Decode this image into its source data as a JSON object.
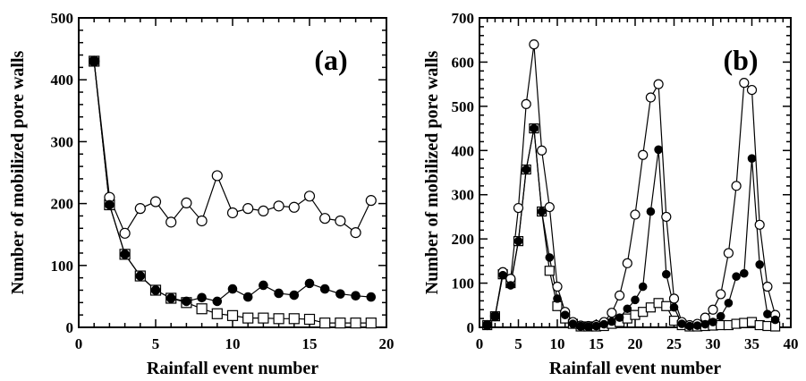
{
  "chart_data": [
    {
      "type": "line",
      "panel_label": "(a)",
      "xlabel": "Rainfall event number",
      "ylabel": "Number of mobilized pore walls",
      "xlim": [
        0,
        20
      ],
      "ylim": [
        0,
        500
      ],
      "xticks": [
        0,
        5,
        10,
        15,
        20
      ],
      "yticks": [
        0,
        100,
        200,
        300,
        400,
        500
      ],
      "grid": false,
      "series": [
        {
          "marker": "open-circle",
          "x": [
            1,
            2,
            3,
            4,
            5,
            6,
            7,
            8,
            9,
            10,
            11,
            12,
            13,
            14,
            15,
            16,
            17,
            18,
            19
          ],
          "y": [
            430,
            210,
            152,
            192,
            203,
            170,
            201,
            172,
            245,
            185,
            192,
            188,
            196,
            194,
            212,
            176,
            172,
            153,
            205
          ]
        },
        {
          "marker": "filled-circle",
          "x": [
            1,
            2,
            3,
            4,
            5,
            6,
            7,
            8,
            9,
            10,
            11,
            12,
            13,
            14,
            15,
            16,
            17,
            18,
            19
          ],
          "y": [
            430,
            198,
            118,
            83,
            60,
            47,
            42,
            48,
            42,
            62,
            49,
            68,
            55,
            52,
            71,
            62,
            54,
            51,
            49
          ]
        },
        {
          "marker": "open-square",
          "x": [
            1,
            2,
            3,
            4,
            5,
            6,
            7,
            8,
            9,
            10,
            11,
            12,
            13,
            14,
            15,
            16,
            17,
            18,
            19
          ],
          "y": [
            430,
            198,
            118,
            83,
            60,
            47,
            40,
            30,
            22,
            19,
            15,
            15,
            14,
            14,
            13,
            7,
            7,
            7,
            7
          ]
        }
      ]
    },
    {
      "type": "line",
      "panel_label": "(b)",
      "xlabel": "Rainfall event number",
      "ylabel": "Number of mobilized pore walls",
      "xlim": [
        0,
        40
      ],
      "ylim": [
        0,
        700
      ],
      "xticks": [
        0,
        5,
        10,
        15,
        20,
        25,
        30,
        35,
        40
      ],
      "yticks": [
        0,
        100,
        200,
        300,
        400,
        500,
        600,
        700
      ],
      "grid": false,
      "series": [
        {
          "marker": "open-circle",
          "x": [
            1,
            2,
            3,
            4,
            5,
            6,
            7,
            8,
            9,
            10,
            11,
            12,
            13,
            14,
            15,
            16,
            17,
            18,
            19,
            20,
            21,
            22,
            23,
            24,
            25,
            26,
            27,
            28,
            29,
            30,
            31,
            32,
            33,
            34,
            35,
            36,
            37,
            38
          ],
          "y": [
            5,
            25,
            125,
            110,
            270,
            505,
            640,
            400,
            272,
            92,
            35,
            12,
            4,
            3,
            5,
            12,
            33,
            72,
            145,
            255,
            390,
            520,
            550,
            250,
            65,
            12,
            5,
            8,
            22,
            40,
            75,
            168,
            320,
            553,
            537,
            232,
            92,
            28
          ]
        },
        {
          "marker": "filled-circle",
          "x": [
            1,
            2,
            3,
            4,
            5,
            6,
            7,
            8,
            9,
            10,
            11,
            12,
            13,
            14,
            15,
            16,
            17,
            18,
            19,
            20,
            21,
            22,
            23,
            24,
            25,
            26,
            27,
            28,
            29,
            30,
            31,
            32,
            33,
            34,
            35,
            36,
            37,
            38
          ],
          "y": [
            5,
            25,
            118,
            95,
            195,
            357,
            450,
            262,
            158,
            65,
            28,
            8,
            3,
            2,
            3,
            7,
            13,
            22,
            42,
            62,
            92,
            262,
            402,
            120,
            45,
            8,
            3,
            4,
            7,
            12,
            25,
            55,
            115,
            122,
            382,
            142,
            30,
            17
          ]
        },
        {
          "marker": "open-square",
          "x": [
            1,
            2,
            3,
            4,
            5,
            6,
            7,
            8,
            9,
            10,
            11,
            12,
            13,
            14,
            15,
            16,
            17,
            18,
            19,
            20,
            21,
            22,
            23,
            24,
            25,
            26,
            27,
            28,
            29,
            30,
            31,
            32,
            33,
            34,
            35,
            36,
            37,
            38
          ],
          "y": [
            5,
            25,
            120,
            100,
            195,
            357,
            450,
            262,
            128,
            48,
            20,
            8,
            2,
            2,
            2,
            3,
            8,
            12,
            20,
            28,
            35,
            45,
            55,
            48,
            15,
            5,
            2,
            2,
            3,
            4,
            5,
            5,
            8,
            10,
            12,
            5,
            3,
            2
          ]
        }
      ]
    }
  ]
}
